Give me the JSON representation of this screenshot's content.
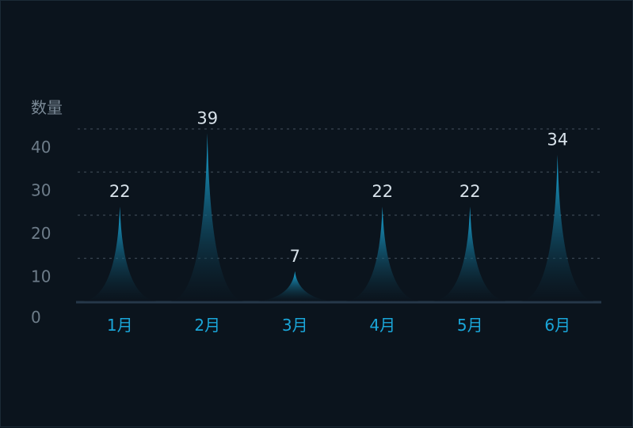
{
  "chart_data": {
    "type": "bar",
    "categories": [
      "1月",
      "2月",
      "3月",
      "4月",
      "5月",
      "6月"
    ],
    "values": [
      22,
      39,
      7,
      22,
      22,
      34
    ],
    "ylabel": "数量",
    "ylim": [
      0,
      40
    ],
    "yticks": [
      "0",
      "10",
      "20",
      "30",
      "40"
    ],
    "grid": true,
    "style": "pictorial-spike",
    "colors": {
      "background": "#0b141d",
      "spike_top": "#1ab2e6",
      "spike_bottom": "#0b141d",
      "grid": "#3a4652",
      "axis": "#26384a",
      "category_label": "#1aa6d9",
      "value_label": "#d8e2ea",
      "ytick_label": "#6d7c89"
    }
  }
}
